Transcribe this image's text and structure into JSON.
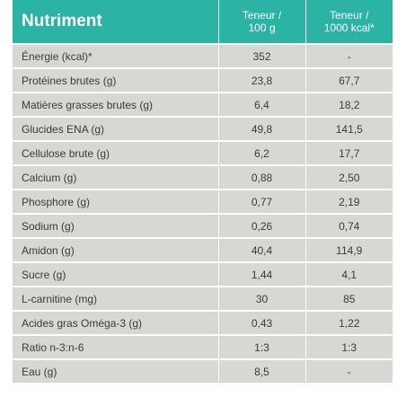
{
  "header": {
    "nutrient": "Nutriment",
    "col1_line1": "Teneur /",
    "col1_line2": "100 g",
    "col2_line1": "Teneur /",
    "col2_line2": "1000 kcal*"
  },
  "rows": [
    {
      "name": "Énergie (kcal)*",
      "per100": "352",
      "per1000": "-"
    },
    {
      "name": "Protéines brutes (g)",
      "per100": "23,8",
      "per1000": "67,7"
    },
    {
      "name": "Matières grasses brutes (g)",
      "per100": "6,4",
      "per1000": "18,2"
    },
    {
      "name": "Glucides ENA (g)",
      "per100": "49,8",
      "per1000": "141,5"
    },
    {
      "name": "Cellulose brute (g)",
      "per100": "6,2",
      "per1000": "17,7"
    },
    {
      "name": "Calcium (g)",
      "per100": "0,88",
      "per1000": "2,50"
    },
    {
      "name": "Phosphore (g)",
      "per100": "0,77",
      "per1000": "2,19"
    },
    {
      "name": "Sodium (g)",
      "per100": "0,26",
      "per1000": "0,74"
    },
    {
      "name": "Amidon (g)",
      "per100": "40,4",
      "per1000": "114,9"
    },
    {
      "name": "Sucre (g)",
      "per100": "1,44",
      "per1000": "4,1"
    },
    {
      "name": "L-carnitine (mg)",
      "per100": "30",
      "per1000": "85"
    },
    {
      "name": "Acides gras Oméga-3 (g)",
      "per100": "0,43",
      "per1000": "1,22"
    },
    {
      "name": "Ratio n-3:n-6",
      "per100": "1:3",
      "per1000": "1:3"
    },
    {
      "name": "Eau (g)",
      "per100": "8,5",
      "per1000": "-"
    }
  ],
  "colors": {
    "header_bg": "#2bb3a3",
    "row_bg": "#d7d8d3",
    "text": "#3a3a3a"
  }
}
